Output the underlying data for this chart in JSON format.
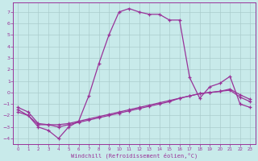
{
  "bg_color": "#c8eaea",
  "line_color": "#993399",
  "grid_color": "#aacccc",
  "xlabel": "Windchill (Refroidissement éolien,°C)",
  "xlim": [
    -0.5,
    23.5
  ],
  "ylim": [
    -4.5,
    7.8
  ],
  "xticks": [
    0,
    1,
    2,
    3,
    4,
    5,
    6,
    7,
    8,
    9,
    10,
    11,
    12,
    13,
    14,
    15,
    16,
    17,
    18,
    19,
    20,
    21,
    22,
    23
  ],
  "yticks": [
    -4,
    -3,
    -2,
    -1,
    0,
    1,
    2,
    3,
    4,
    5,
    6,
    7
  ],
  "line1_x": [
    0,
    1,
    2,
    3,
    4,
    5,
    6,
    7,
    8,
    9,
    10,
    11,
    12,
    13,
    14,
    15,
    16,
    17,
    18,
    19,
    20,
    21,
    22,
    23
  ],
  "line1_y": [
    -1.5,
    -2.0,
    -3.0,
    -3.3,
    -4.0,
    -3.0,
    -2.5,
    -0.3,
    2.5,
    5.0,
    7.0,
    7.3,
    7.0,
    6.8,
    6.8,
    6.3,
    6.3,
    1.3,
    -0.5,
    0.5,
    0.8,
    1.4,
    -1.0,
    -1.3
  ],
  "line2_x": [
    0,
    1,
    2,
    3,
    4,
    5,
    6,
    7,
    8,
    9,
    10,
    11,
    12,
    13,
    14,
    15,
    16,
    17,
    18,
    19,
    20,
    21,
    22,
    23
  ],
  "line2_y": [
    -1.7,
    -2.0,
    -2.8,
    -2.8,
    -2.8,
    -2.7,
    -2.5,
    -2.3,
    -2.1,
    -1.9,
    -1.7,
    -1.5,
    -1.3,
    -1.1,
    -0.9,
    -0.7,
    -0.5,
    -0.3,
    -0.1,
    0.0,
    0.1,
    0.2,
    -0.4,
    -0.8
  ],
  "line3_x": [
    0,
    1,
    2,
    3,
    4,
    5,
    6,
    7,
    8,
    9,
    10,
    11,
    12,
    13,
    14,
    15,
    16,
    17,
    18,
    19,
    20,
    21,
    22,
    23
  ],
  "line3_y": [
    -1.3,
    -1.7,
    -2.7,
    -2.8,
    -3.0,
    -2.8,
    -2.6,
    -2.4,
    -2.2,
    -2.0,
    -1.8,
    -1.6,
    -1.4,
    -1.2,
    -1.0,
    -0.8,
    -0.5,
    -0.3,
    -0.1,
    0.0,
    0.1,
    0.3,
    -0.2,
    -0.6
  ]
}
